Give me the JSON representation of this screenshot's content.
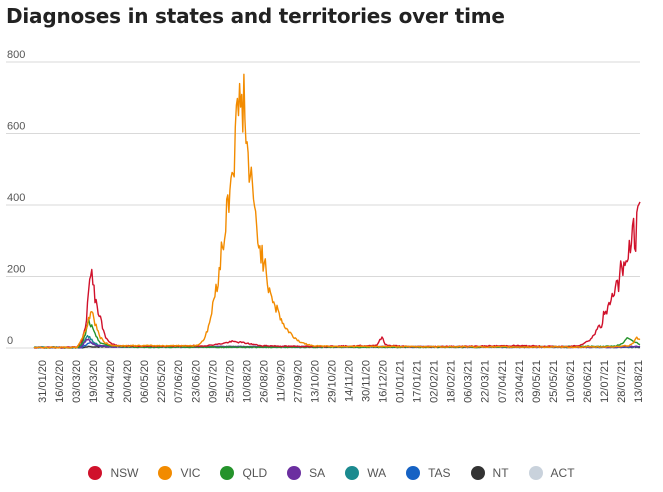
{
  "title": "Diagnoses in states and territories over time",
  "chart_data": {
    "type": "line",
    "title": "Diagnoses in states and territories over time",
    "ylim": [
      0,
      800
    ],
    "yticks": [
      0,
      200,
      400,
      600,
      800
    ],
    "x_tick_labels": [
      "31/01/20",
      "16/02/20",
      "03/03/20",
      "19/03/20",
      "04/04/20",
      "20/04/20",
      "06/05/20",
      "22/05/20",
      "07/06/20",
      "23/06/20",
      "09/07/20",
      "25/07/20",
      "10/08/20",
      "26/08/20",
      "11/09/20",
      "27/09/20",
      "13/10/20",
      "29/10/20",
      "14/11/20",
      "30/11/20",
      "16/12/20",
      "01/01/21",
      "17/01/21",
      "02/02/21",
      "18/02/21",
      "06/03/21",
      "22/03/21",
      "07/04/21",
      "23/04/21",
      "09/05/21",
      "25/05/21",
      "10/06/21",
      "26/06/21",
      "12/07/21",
      "28/07/21",
      "13/08/21"
    ],
    "x_start_index": 0,
    "grid": "horizontal",
    "legend_position": "bottom",
    "series": [
      {
        "name": "NSW",
        "color": "#d0112b",
        "points": [
          [
            0,
            0
          ],
          [
            30,
            0
          ],
          [
            40,
            2
          ],
          [
            45,
            20
          ],
          [
            48,
            60
          ],
          [
            50,
            120
          ],
          [
            52,
            200
          ],
          [
            53,
            212
          ],
          [
            55,
            180
          ],
          [
            58,
            130
          ],
          [
            61,
            90
          ],
          [
            64,
            60
          ],
          [
            67,
            30
          ],
          [
            72,
            12
          ],
          [
            80,
            5
          ],
          [
            100,
            3
          ],
          [
            140,
            4
          ],
          [
            160,
            6
          ],
          [
            175,
            12
          ],
          [
            185,
            18
          ],
          [
            195,
            15
          ],
          [
            205,
            10
          ],
          [
            215,
            5
          ],
          [
            240,
            3
          ],
          [
            300,
            4
          ],
          [
            320,
            8
          ],
          [
            325,
            30
          ],
          [
            328,
            10
          ],
          [
            335,
            5
          ],
          [
            350,
            2
          ],
          [
            400,
            3
          ],
          [
            450,
            5
          ],
          [
            480,
            3
          ],
          [
            500,
            2
          ],
          [
            510,
            8
          ],
          [
            515,
            15
          ],
          [
            520,
            25
          ],
          [
            525,
            45
          ],
          [
            528,
            70
          ],
          [
            530,
            60
          ],
          [
            532,
            100
          ],
          [
            535,
            95
          ],
          [
            538,
            130
          ],
          [
            540,
            150
          ],
          [
            543,
            170
          ],
          [
            546,
            180
          ],
          [
            548,
            240
          ],
          [
            550,
            200
          ],
          [
            553,
            240
          ],
          [
            555,
            260
          ],
          [
            558,
            300
          ],
          [
            560,
            320
          ],
          [
            562,
            310
          ],
          [
            564,
            360
          ],
          [
            566,
            390
          ]
        ]
      },
      {
        "name": "VIC",
        "color": "#f28b00",
        "points": [
          [
            0,
            0
          ],
          [
            40,
            0
          ],
          [
            47,
            40
          ],
          [
            50,
            70
          ],
          [
            52,
            90
          ],
          [
            54,
            110
          ],
          [
            56,
            80
          ],
          [
            59,
            50
          ],
          [
            62,
            30
          ],
          [
            66,
            15
          ],
          [
            75,
            5
          ],
          [
            100,
            5
          ],
          [
            150,
            5
          ],
          [
            155,
            12
          ],
          [
            160,
            30
          ],
          [
            163,
            60
          ],
          [
            166,
            100
          ],
          [
            169,
            150
          ],
          [
            172,
            200
          ],
          [
            174,
            250
          ],
          [
            176,
            280
          ],
          [
            178,
            320
          ],
          [
            180,
            380
          ],
          [
            182,
            430
          ],
          [
            184,
            480
          ],
          [
            186,
            520
          ],
          [
            188,
            580
          ],
          [
            190,
            640
          ],
          [
            192,
            700
          ],
          [
            193,
            725
          ],
          [
            194,
            650
          ],
          [
            196,
            720
          ],
          [
            198,
            580
          ],
          [
            200,
            520
          ],
          [
            202,
            480
          ],
          [
            204,
            420
          ],
          [
            206,
            380
          ],
          [
            208,
            340
          ],
          [
            210,
            300
          ],
          [
            213,
            260
          ],
          [
            216,
            220
          ],
          [
            219,
            180
          ],
          [
            222,
            150
          ],
          [
            225,
            120
          ],
          [
            228,
            100
          ],
          [
            231,
            80
          ],
          [
            234,
            60
          ],
          [
            238,
            45
          ],
          [
            243,
            30
          ],
          [
            248,
            18
          ],
          [
            255,
            10
          ],
          [
            262,
            5
          ],
          [
            280,
            3
          ],
          [
            400,
            2
          ],
          [
            500,
            1
          ],
          [
            540,
            2
          ],
          [
            555,
            5
          ],
          [
            560,
            15
          ],
          [
            563,
            30
          ],
          [
            566,
            25
          ]
        ]
      },
      {
        "name": "QLD",
        "color": "#25932b",
        "points": [
          [
            0,
            0
          ],
          [
            42,
            0
          ],
          [
            46,
            20
          ],
          [
            49,
            50
          ],
          [
            51,
            75
          ],
          [
            53,
            65
          ],
          [
            55,
            50
          ],
          [
            58,
            30
          ],
          [
            62,
            15
          ],
          [
            68,
            8
          ],
          [
            78,
            3
          ],
          [
            100,
            1
          ],
          [
            300,
            1
          ],
          [
            400,
            1
          ],
          [
            540,
            3
          ],
          [
            550,
            12
          ],
          [
            555,
            30
          ],
          [
            558,
            20
          ],
          [
            566,
            10
          ]
        ]
      },
      {
        "name": "SA",
        "color": "#6b2fa0",
        "points": [
          [
            0,
            0
          ],
          [
            44,
            0
          ],
          [
            47,
            15
          ],
          [
            50,
            25
          ],
          [
            52,
            20
          ],
          [
            55,
            12
          ],
          [
            60,
            5
          ],
          [
            70,
            2
          ],
          [
            300,
            2
          ],
          [
            540,
            1
          ],
          [
            566,
            3
          ]
        ]
      },
      {
        "name": "WA",
        "color": "#1b8a8f",
        "points": [
          [
            0,
            0
          ],
          [
            43,
            0
          ],
          [
            47,
            20
          ],
          [
            50,
            35
          ],
          [
            52,
            30
          ],
          [
            55,
            18
          ],
          [
            60,
            8
          ],
          [
            70,
            3
          ],
          [
            100,
            1
          ],
          [
            566,
            2
          ]
        ]
      },
      {
        "name": "TAS",
        "color": "#1662c4",
        "points": [
          [
            0,
            0
          ],
          [
            45,
            0
          ],
          [
            49,
            10
          ],
          [
            53,
            15
          ],
          [
            56,
            10
          ],
          [
            62,
            5
          ],
          [
            70,
            2
          ],
          [
            566,
            1
          ]
        ]
      },
      {
        "name": "NT",
        "color": "#333333",
        "points": [
          [
            0,
            0
          ],
          [
            48,
            0
          ],
          [
            52,
            3
          ],
          [
            56,
            2
          ],
          [
            566,
            1
          ]
        ]
      },
      {
        "name": "ACT",
        "color": "#c9d2dc",
        "points": [
          [
            0,
            0
          ],
          [
            46,
            0
          ],
          [
            50,
            6
          ],
          [
            54,
            4
          ],
          [
            60,
            2
          ],
          [
            566,
            2
          ]
        ]
      }
    ]
  }
}
